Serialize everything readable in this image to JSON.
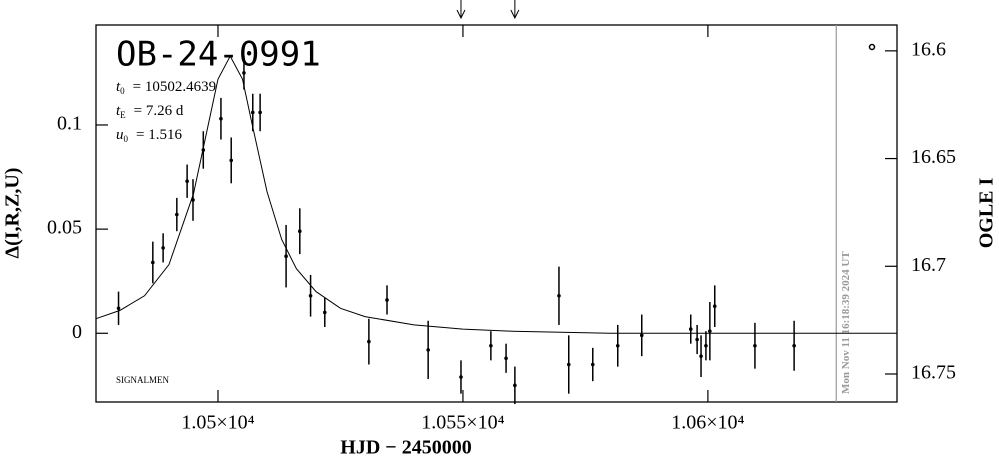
{
  "chart_data": {
    "type": "errorbar",
    "title": "OB-24-0991",
    "params": [
      {
        "symbol": "t",
        "sub": "0",
        "text": "= 10502.4639"
      },
      {
        "symbol": "t",
        "sub": "E",
        "text": "= 7.26  d"
      },
      {
        "symbol": "u",
        "sub": "0",
        "text": "= 1.516"
      }
    ],
    "credit": "SIGNALMEN",
    "xlabel": "HJD − 2450000",
    "ylabel": "Δ(I,R,Z,U)",
    "y2label": "OGLE I",
    "xlim": [
      10475.1,
      10638.6
    ],
    "ylim": [
      -0.033,
      0.148
    ],
    "y2lim": [
      16.588,
      16.763
    ],
    "xticks": [
      {
        "value": 10500,
        "label": "1.05×10⁴"
      },
      {
        "value": 10550,
        "label": "1.055×10⁴"
      },
      {
        "value": 10600,
        "label": "1.06×10⁴"
      }
    ],
    "yticks": [
      0,
      0.05,
      0.1
    ],
    "y2ticks": [
      16.6,
      16.65,
      16.7,
      16.75
    ],
    "color": "#000000",
    "points": {
      "x": [
        10479.7,
        10486.7,
        10488.8,
        10491.6,
        10493.7,
        10494.9,
        10497.0,
        10500.6,
        10502.7,
        10505.3,
        10507.1,
        10508.6,
        10513.9,
        10516.7,
        10518.9,
        10521.8,
        10530.8,
        10534.5,
        10542.9,
        10549.6,
        10555.7,
        10558.8,
        10560.6,
        10569.6,
        10571.6,
        10576.5,
        10581.6,
        10586.5,
        10596.5,
        10597.8,
        10598.6,
        10599.6,
        10600.4,
        10601.4,
        10609.6,
        10617.6
      ],
      "values": [
        0.012,
        0.034,
        0.041,
        0.057,
        0.073,
        0.064,
        0.088,
        0.103,
        0.083,
        0.125,
        0.106,
        0.106,
        0.037,
        0.049,
        0.018,
        0.01,
        -0.004,
        0.016,
        -0.008,
        -0.021,
        -0.006,
        -0.012,
        -0.025,
        0.018,
        -0.015,
        -0.015,
        -0.006,
        -0.001,
        0.002,
        -0.003,
        -0.011,
        -0.006,
        0.001,
        0.013,
        -0.006,
        -0.006
      ],
      "errors": [
        0.008,
        0.01,
        0.007,
        0.008,
        0.008,
        0.01,
        0.009,
        0.01,
        0.011,
        0.008,
        0.009,
        0.009,
        0.015,
        0.011,
        0.01,
        0.007,
        0.011,
        0.007,
        0.014,
        0.008,
        0.007,
        0.007,
        0.009,
        0.014,
        0.014,
        0.008,
        0.01,
        0.01,
        0.007,
        0.007,
        0.01,
        0.007,
        0.014,
        0.01,
        0.011,
        0.012
      ]
    },
    "model": {
      "x": [
        10475.1,
        10480,
        10485,
        10490,
        10495,
        10498,
        10500,
        10502.5,
        10505,
        10507,
        10510,
        10513,
        10516,
        10520,
        10525,
        10530,
        10540,
        10550,
        10560,
        10580,
        10638.6
      ],
      "y": [
        0.007,
        0.011,
        0.018,
        0.033,
        0.067,
        0.1,
        0.122,
        0.133,
        0.122,
        0.1,
        0.068,
        0.045,
        0.031,
        0.02,
        0.012,
        0.008,
        0.004,
        0.002,
        0.001,
        0.0,
        0.0
      ]
    },
    "arrows_x": [
      10549.6,
      10560.6
    ],
    "timestamp": {
      "x": 10626.2,
      "label": "Mon Nov 11 16:18:39 2024 UT"
    }
  }
}
